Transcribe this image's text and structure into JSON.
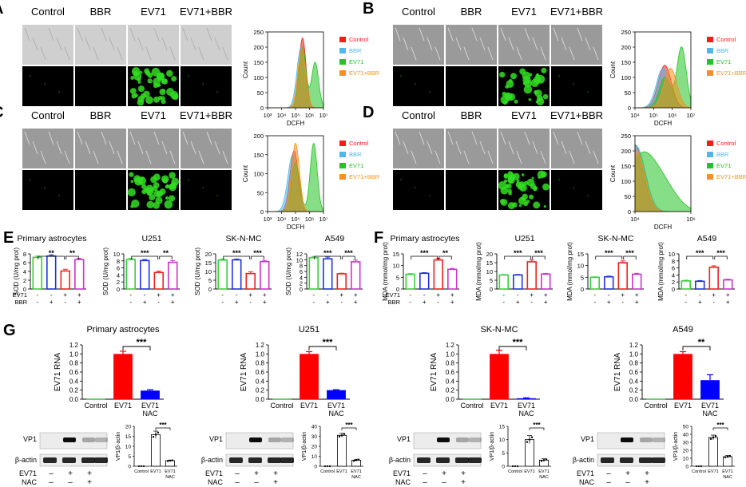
{
  "colors": {
    "control": "#ff1a1a",
    "bbr": "#4fb8e8",
    "ev71": "#22c322",
    "ev71bbr": "#f5921e",
    "bar_control": "#39d039",
    "bar_bbr": "#2233dd",
    "bar_ev71": "#ee2222",
    "bar_ev71bbr": "#cc33cc",
    "rna_ev71": "#ff0000",
    "rna_nac": "#0000ff",
    "fluor": "#33dd22"
  },
  "panels": {
    "A": {
      "label": "A",
      "cols": [
        "Control",
        "BBR",
        "EV71",
        "EV71+BBR"
      ]
    },
    "B": {
      "label": "B",
      "cols": [
        "Control",
        "BBR",
        "EV71",
        "EV71+BBR"
      ]
    },
    "C": {
      "label": "C",
      "cols": [
        "Control",
        "BBR",
        "EV71",
        "EV71+BBR"
      ]
    },
    "D": {
      "label": "D",
      "cols": [
        "Control",
        "BBR",
        "EV71",
        "EV71+BBR"
      ]
    },
    "E": {
      "label": "E"
    },
    "F": {
      "label": "F"
    },
    "G": {
      "label": "G"
    }
  },
  "chart_data": [
    {
      "id": "A-flow",
      "type": "area",
      "xlabel": "DCFH",
      "ylabel": "Count",
      "xscale": "log",
      "x_ticks": [
        "10³",
        "10⁴",
        "10⁵",
        "10⁶",
        "10⁷"
      ],
      "x_tick_exp": [
        3,
        4,
        5,
        6,
        7
      ],
      "ylim": [
        0,
        250
      ],
      "y_ticks": [
        0,
        50,
        100,
        150,
        200,
        250
      ],
      "legend": [
        "Control",
        "BBR",
        "EV71",
        "EV71+BBR"
      ],
      "series": [
        {
          "name": "Control",
          "color_key": "control",
          "peaks": [
            [
              5.5,
              230,
              0.25
            ]
          ]
        },
        {
          "name": "BBR",
          "color_key": "bbr",
          "peaks": [
            [
              5.4,
              200,
              0.3
            ]
          ]
        },
        {
          "name": "EV71",
          "color_key": "ev71",
          "peaks": [
            [
              5.5,
              200,
              0.25
            ],
            [
              6.4,
              150,
              0.25
            ]
          ]
        },
        {
          "name": "EV71+BBR",
          "color_key": "ev71bbr",
          "peaks": [
            [
              5.45,
              195,
              0.28
            ]
          ]
        }
      ]
    },
    {
      "id": "B-flow",
      "type": "area",
      "xlabel": "DCFH",
      "ylabel": "Count",
      "xscale": "log",
      "x_ticks": [
        "10⁴",
        "10⁵",
        "10⁶",
        "10⁷"
      ],
      "x_tick_exp": [
        4,
        5,
        6,
        7
      ],
      "ylim": [
        0,
        250
      ],
      "y_ticks": [
        0,
        50,
        100,
        150,
        200,
        250
      ],
      "legend": [
        "Control",
        "BBR",
        "EV71",
        "EV71+BBR"
      ],
      "series": [
        {
          "name": "Control",
          "color_key": "control",
          "peaks": [
            [
              5.6,
              140,
              0.35
            ]
          ]
        },
        {
          "name": "BBR",
          "color_key": "bbr",
          "peaks": [
            [
              5.5,
              130,
              0.35
            ]
          ]
        },
        {
          "name": "EV71",
          "color_key": "ev71",
          "peaks": [
            [
              5.6,
              100,
              0.3
            ],
            [
              6.5,
              200,
              0.25
            ]
          ]
        },
        {
          "name": "EV71+BBR",
          "color_key": "ev71bbr",
          "peaks": [
            [
              5.9,
              130,
              0.35
            ]
          ]
        }
      ]
    },
    {
      "id": "C-flow",
      "type": "area",
      "xlabel": "DCFH",
      "ylabel": "Count",
      "xscale": "log",
      "x_ticks": [
        "10³",
        "10⁴",
        "10⁵",
        "10⁶",
        "10⁷"
      ],
      "x_tick_exp": [
        3,
        4,
        5,
        6,
        7
      ],
      "ylim": [
        0,
        200
      ],
      "y_ticks": [
        0,
        50,
        100,
        150,
        200
      ],
      "legend": [
        "Control",
        "BBR",
        "EV71",
        "EV71+BBR"
      ],
      "series": [
        {
          "name": "Control",
          "color_key": "control",
          "peaks": [
            [
              4.9,
              160,
              0.3
            ]
          ]
        },
        {
          "name": "BBR",
          "color_key": "bbr",
          "peaks": [
            [
              4.8,
              150,
              0.35
            ]
          ]
        },
        {
          "name": "EV71",
          "color_key": "ev71",
          "peaks": [
            [
              5.0,
              130,
              0.3
            ],
            [
              6.3,
              180,
              0.25
            ]
          ]
        },
        {
          "name": "EV71+BBR",
          "color_key": "ev71bbr",
          "peaks": [
            [
              5.0,
              180,
              0.28
            ]
          ]
        }
      ]
    },
    {
      "id": "D-flow",
      "type": "area",
      "xlabel": "DCFH",
      "ylabel": "Count",
      "xscale": "log",
      "x_ticks": [
        "10⁴",
        "10⁶"
      ],
      "x_tick_exp": [
        4,
        6
      ],
      "ylim": [
        0,
        250
      ],
      "y_ticks": [
        0,
        50,
        100,
        150,
        200,
        250
      ],
      "legend": [
        "Control",
        "BBR",
        "EV71",
        "EV71+BBR"
      ],
      "series": [
        {
          "name": "Control",
          "color_key": "control",
          "peaks": [
            [
              4.0,
              220,
              0.3
            ]
          ]
        },
        {
          "name": "BBR",
          "color_key": "bbr",
          "peaks": [
            [
              4.05,
              215,
              0.32
            ]
          ]
        },
        {
          "name": "EV71",
          "color_key": "ev71",
          "peaks": [
            [
              4.2,
              170,
              0.5
            ],
            [
              5.0,
              80,
              0.5
            ]
          ]
        },
        {
          "name": "EV71+BBR",
          "color_key": "ev71bbr",
          "peaks": [
            [
              4.05,
              200,
              0.3
            ]
          ]
        }
      ]
    },
    {
      "id": "E1",
      "type": "bar",
      "title": "Primary astrocytes",
      "ylabel": "SOD (U/mg prot)",
      "ylim": [
        0,
        8
      ],
      "y_ticks": [
        0,
        2,
        4,
        6,
        8
      ],
      "values": [
        7.2,
        7.5,
        4.1,
        6.7
      ],
      "errors": [
        0.3,
        0.3,
        0.4,
        0.3
      ],
      "sig": [
        {
          "a": 0,
          "b": 2,
          "text": "**",
          "lvl": 0
        },
        {
          "a": 2,
          "b": 3,
          "text": "**",
          "lvl": 0
        }
      ],
      "row1": [
        "-",
        "-",
        "+",
        "+"
      ],
      "row2": [
        "-",
        "+",
        "-",
        "+"
      ],
      "row_labels": [
        "EV71",
        "BBR"
      ]
    },
    {
      "id": "E2",
      "type": "bar",
      "title": "U251",
      "ylabel": "SOD (U/mg prot)",
      "ylim": [
        0,
        10
      ],
      "y_ticks": [
        0,
        2,
        4,
        6,
        8,
        10
      ],
      "values": [
        8.4,
        8.1,
        4.7,
        7.6
      ],
      "errors": [
        0.3,
        0.3,
        0.4,
        0.5
      ],
      "sig": [
        {
          "a": 0,
          "b": 2,
          "text": "***",
          "lvl": 0
        },
        {
          "a": 2,
          "b": 3,
          "text": "**",
          "lvl": 0
        }
      ],
      "row1": [
        "-",
        "-",
        "+",
        "+"
      ],
      "row2": [
        "-",
        "+",
        "-",
        "+"
      ],
      "row_labels": [
        "",
        ""
      ]
    },
    {
      "id": "E3",
      "type": "bar",
      "title": "SK-N-MC",
      "ylabel": "SOD (U/mg prot)",
      "ylim": [
        0,
        20
      ],
      "y_ticks": [
        0,
        5,
        10,
        15,
        20
      ],
      "values": [
        16.5,
        16.6,
        8.8,
        15.6
      ],
      "errors": [
        0.6,
        0.5,
        1.0,
        0.7
      ],
      "sig": [
        {
          "a": 0,
          "b": 2,
          "text": "***",
          "lvl": 0
        },
        {
          "a": 2,
          "b": 3,
          "text": "***",
          "lvl": 0
        }
      ],
      "row1": [
        "-",
        "-",
        "+",
        "+"
      ],
      "row2": [
        "-",
        "+",
        "-",
        "+"
      ],
      "row_labels": [
        "",
        ""
      ]
    },
    {
      "id": "E4",
      "type": "bar",
      "title": "A549",
      "ylabel": "SOD (U/mg prot)",
      "ylim": [
        0,
        12
      ],
      "y_ticks": [
        0,
        2,
        4,
        6,
        8,
        10,
        12
      ],
      "values": [
        10.7,
        10.3,
        5.2,
        9.3
      ],
      "errors": [
        0.4,
        0.6,
        0.2,
        0.6
      ],
      "sig": [
        {
          "a": 0,
          "b": 2,
          "text": "***",
          "lvl": 0
        },
        {
          "a": 2,
          "b": 3,
          "text": "***",
          "lvl": 0
        }
      ],
      "row1": [
        "-",
        "-",
        "+",
        "+"
      ],
      "row2": [
        "-",
        "+",
        "-",
        "+"
      ],
      "row_labels": [
        "",
        ""
      ]
    },
    {
      "id": "F1",
      "type": "bar",
      "title": "Primary astrocytes",
      "ylabel": "MDA (mmol/mg prot)",
      "ylim": [
        0,
        15
      ],
      "y_ticks": [
        0,
        5,
        10,
        15
      ],
      "values": [
        6.3,
        6.7,
        12.4,
        8.4
      ],
      "errors": [
        0.3,
        0.3,
        0.7,
        0.4
      ],
      "sig": [
        {
          "a": 0,
          "b": 2,
          "text": "***",
          "lvl": 0
        },
        {
          "a": 2,
          "b": 3,
          "text": "**",
          "lvl": 0
        }
      ],
      "row1": [
        "-",
        "-",
        "+",
        "+"
      ],
      "row2": [
        "-",
        "+",
        "-",
        "+"
      ],
      "row_labels": [
        "EV71",
        "BBR"
      ]
    },
    {
      "id": "F2",
      "type": "bar",
      "title": "U251",
      "ylabel": "MDA (mmol/mg prot)",
      "ylim": [
        0,
        20
      ],
      "y_ticks": [
        0,
        5,
        10,
        15,
        20
      ],
      "values": [
        8.0,
        8.0,
        15.5,
        8.5
      ],
      "errors": [
        0.3,
        0.3,
        1.0,
        0.4
      ],
      "sig": [
        {
          "a": 0,
          "b": 2,
          "text": "***",
          "lvl": 0
        },
        {
          "a": 2,
          "b": 3,
          "text": "***",
          "lvl": 0
        }
      ],
      "row1": [
        "-",
        "-",
        "+",
        "+"
      ],
      "row2": [
        "-",
        "+",
        "-",
        "+"
      ],
      "row_labels": [
        "",
        ""
      ]
    },
    {
      "id": "F3",
      "type": "bar",
      "title": "SK-N-MC",
      "ylabel": "MDA (mmol/mg prot)",
      "ylim": [
        0,
        15
      ],
      "y_ticks": [
        0,
        5,
        10,
        15
      ],
      "values": [
        5.0,
        5.2,
        11.2,
        6.3
      ],
      "errors": [
        0.2,
        0.3,
        0.8,
        0.4
      ],
      "sig": [
        {
          "a": 0,
          "b": 2,
          "text": "***",
          "lvl": 0
        },
        {
          "a": 2,
          "b": 3,
          "text": "***",
          "lvl": 0
        }
      ],
      "row1": [
        "-",
        "-",
        "+",
        "+"
      ],
      "row2": [
        "-",
        "+",
        "-",
        "+"
      ],
      "row_labels": [
        "",
        ""
      ]
    },
    {
      "id": "F4",
      "type": "bar",
      "title": "A549",
      "ylabel": "MDA (mmol/mg prot)",
      "ylim": [
        0,
        10
      ],
      "y_ticks": [
        0,
        2,
        4,
        6,
        8,
        10
      ],
      "values": [
        2.3,
        2.2,
        6.2,
        2.6
      ],
      "errors": [
        0.2,
        0.2,
        0.4,
        0.2
      ],
      "sig": [
        {
          "a": 0,
          "b": 2,
          "text": "***",
          "lvl": 0
        },
        {
          "a": 2,
          "b": 3,
          "text": "***",
          "lvl": 0
        }
      ],
      "row1": [
        "-",
        "-",
        "+",
        "+"
      ],
      "row2": [
        "-",
        "+",
        "-",
        "+"
      ],
      "row_labels": [
        "",
        ""
      ]
    },
    {
      "id": "G-rna1",
      "type": "bar",
      "title": "Primary astrocytes",
      "ylabel": "EV71 RNA",
      "ylim": [
        0,
        1.2
      ],
      "y_ticks": [
        0.0,
        0.2,
        0.4,
        0.6,
        0.8,
        1.0,
        1.2
      ],
      "categories": [
        "Control",
        "EV71",
        "EV71\nNAC"
      ],
      "values": [
        0.0,
        1.0,
        0.19
      ],
      "errors": [
        0.0,
        0.06,
        0.02
      ],
      "sig": {
        "a": 1,
        "b": 2,
        "text": "***"
      }
    },
    {
      "id": "G-rna2",
      "type": "bar",
      "title": "U251",
      "ylabel": "EV71 RNA",
      "ylim": [
        0,
        1.2
      ],
      "y_ticks": [
        0.0,
        0.2,
        0.4,
        0.6,
        0.8,
        1.0,
        1.2
      ],
      "categories": [
        "Control",
        "EV71",
        "EV71\nNAC"
      ],
      "values": [
        0.0,
        1.0,
        0.2
      ],
      "errors": [
        0.0,
        0.05,
        0.01
      ],
      "sig": {
        "a": 1,
        "b": 2,
        "text": "***"
      }
    },
    {
      "id": "G-rna3",
      "type": "bar",
      "title": "SK-N-MC",
      "ylabel": "EV71 RNA",
      "ylim": [
        0,
        1.2
      ],
      "y_ticks": [
        0.0,
        0.2,
        0.4,
        0.6,
        0.8,
        1.0,
        1.2
      ],
      "categories": [
        "Control",
        "EV71",
        "EV71\nNAC"
      ],
      "values": [
        0.0,
        1.0,
        0.02
      ],
      "errors": [
        0.0,
        0.08,
        0.01
      ],
      "sig": {
        "a": 1,
        "b": 2,
        "text": "***"
      }
    },
    {
      "id": "G-rna4",
      "type": "bar",
      "title": "A549",
      "ylabel": "EV71 RNA",
      "ylim": [
        0,
        1.2
      ],
      "y_ticks": [
        0.0,
        0.2,
        0.4,
        0.6,
        0.8,
        1.0,
        1.2
      ],
      "categories": [
        "Control",
        "EV71",
        "EV71\nNAC"
      ],
      "values": [
        0.0,
        1.0,
        0.42
      ],
      "errors": [
        0.0,
        0.05,
        0.12
      ],
      "sig": {
        "a": 1,
        "b": 2,
        "text": "**"
      }
    },
    {
      "id": "G-vp1",
      "type": "bar",
      "ylabel": "VP1/β-actin",
      "categories": [
        "Control",
        "EV71",
        "EV71\nNAC"
      ],
      "blot_labels": [
        "VP1",
        "β-actin"
      ],
      "row_labels": [
        "EV71",
        "NAC"
      ],
      "row1": [
        "–",
        "+",
        "+"
      ],
      "row2": [
        "–",
        "–",
        "+"
      ],
      "panels": [
        {
          "ylim": [
            0,
            20
          ],
          "y_ticks": [
            0,
            5,
            10,
            15,
            20
          ],
          "values": [
            0.0,
            15.8,
            2.8
          ],
          "errors": [
            0.0,
            1.8,
            0.3
          ],
          "sig": "***"
        },
        {
          "ylim": [
            0,
            40
          ],
          "y_ticks": [
            0,
            10,
            20,
            30,
            40
          ],
          "values": [
            0.0,
            31.0,
            6.0
          ],
          "errors": [
            0.0,
            2.0,
            1.0
          ],
          "sig": "***"
        },
        {
          "ylim": [
            0,
            15
          ],
          "y_ticks": [
            0,
            5,
            10,
            15
          ],
          "values": [
            0.0,
            10.0,
            2.3
          ],
          "errors": [
            0.0,
            1.5,
            0.5
          ],
          "sig": "***"
        },
        {
          "ylim": [
            0,
            50
          ],
          "y_ticks": [
            0,
            10,
            20,
            30,
            40,
            50
          ],
          "values": [
            0.0,
            36.0,
            12.0
          ],
          "errors": [
            0.0,
            3.0,
            1.5
          ],
          "sig": "***"
        }
      ]
    }
  ]
}
